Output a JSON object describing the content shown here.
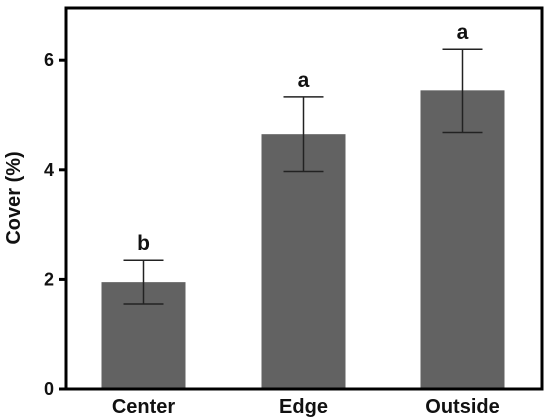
{
  "chart_data": {
    "type": "bar",
    "title": "",
    "xlabel": "",
    "ylabel": "Cover (%)",
    "categories": [
      "Center",
      "Edge",
      "Outside"
    ],
    "values": [
      1.95,
      4.65,
      5.45
    ],
    "error_low": [
      1.55,
      3.97,
      4.68
    ],
    "error_high": [
      2.35,
      5.33,
      6.2
    ],
    "significance_letters": [
      "b",
      "a",
      "a"
    ],
    "ylim": [
      0,
      7
    ],
    "yticks": [
      0,
      2,
      4,
      6
    ],
    "ytick_labels": [
      "0",
      "2",
      "4",
      "6"
    ],
    "grid": false,
    "legend": "none",
    "colors": {
      "bar": "#626262",
      "axis": "#000000",
      "error": "#222222"
    }
  }
}
